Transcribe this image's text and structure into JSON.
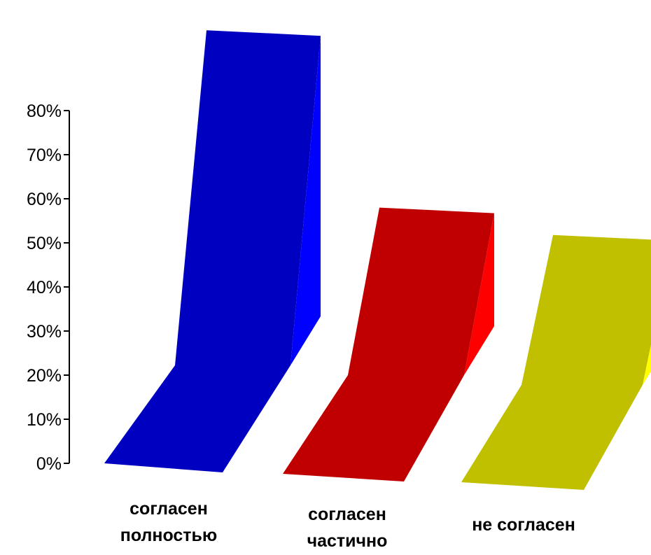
{
  "chart_data": {
    "type": "bar",
    "style": "3d",
    "categories": [
      [
        "согласен",
        "полностью"
      ],
      [
        "согласен",
        "частично"
      ],
      [
        "не согласен"
      ]
    ],
    "values": [
      76,
      38,
      34
    ],
    "value_unit": "%",
    "ylim": [
      0,
      80
    ],
    "yticks": [
      "0%",
      "10%",
      "20%",
      "30%",
      "40%",
      "50%",
      "60%",
      "70%",
      "80%"
    ],
    "grid": false,
    "legend": "none",
    "colors": [
      {
        "front": "#0000c0",
        "side": "#0000ff"
      },
      {
        "front": "#c00000",
        "side": "#ff0000"
      },
      {
        "front": "#c0c000",
        "side": "#ffff00"
      }
    ]
  }
}
